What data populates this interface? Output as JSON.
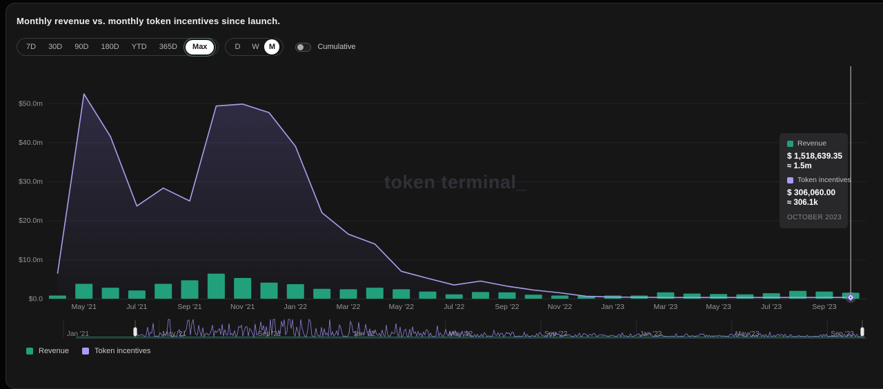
{
  "header": {
    "title": "Monthly revenue vs. monthly token incentives since launch."
  },
  "controls": {
    "ranges": [
      "7D",
      "30D",
      "90D",
      "180D",
      "YTD",
      "365D",
      "Max"
    ],
    "selected_range": "Max",
    "granularities": [
      "D",
      "W",
      "M"
    ],
    "selected_granularity": "M",
    "cumulative_label": "Cumulative",
    "cumulative_on": false
  },
  "watermark": "token terminal_",
  "tooltip": {
    "rows": [
      {
        "label": "Revenue",
        "color": "#22a07c",
        "value": "$ 1,518,639.35",
        "approx": "≈ 1.5m"
      },
      {
        "label": "Token incentives",
        "color": "#a99df3",
        "value": "$ 306,060.00",
        "approx": "≈ 306.1k"
      }
    ],
    "period": "OCTOBER 2023"
  },
  "legend": [
    {
      "label": "Revenue",
      "color": "#22a07c"
    },
    {
      "label": "Token incentives",
      "color": "#a99df3"
    }
  ],
  "chart_data": {
    "type": "bar+line",
    "title": "Monthly revenue vs. monthly token incentives since launch.",
    "unit": "USD millions",
    "categories": [
      "Apr '21",
      "May '21",
      "Jun '21",
      "Jul '21",
      "Aug '21",
      "Sep '21",
      "Oct '21",
      "Nov '21",
      "Dec '21",
      "Jan '22",
      "Feb '22",
      "Mar '22",
      "Apr '22",
      "May '22",
      "Jun '22",
      "Jul '22",
      "Aug '22",
      "Sep '22",
      "Oct '22",
      "Nov '22",
      "Dec '22",
      "Jan '23",
      "Feb '23",
      "Mar '23",
      "Apr '23",
      "May '23",
      "Jun '23",
      "Jul '23",
      "Aug '23",
      "Sep '23",
      "Oct '23"
    ],
    "series": [
      {
        "name": "Revenue",
        "type": "bar",
        "color": "#22a07c",
        "values": [
          0.8,
          3.8,
          2.8,
          2.1,
          3.8,
          4.7,
          6.4,
          5.3,
          4.1,
          3.7,
          2.5,
          2.4,
          2.8,
          2.4,
          1.8,
          1.1,
          1.7,
          1.6,
          1.0,
          0.8,
          0.7,
          0.8,
          0.8,
          1.6,
          1.3,
          1.2,
          1.1,
          1.4,
          2.0,
          1.8,
          1.52
        ]
      },
      {
        "name": "Token incentives",
        "type": "line",
        "color": "#aaa0ed",
        "values": [
          6.4,
          52.4,
          41.5,
          23.7,
          28.3,
          25.0,
          49.3,
          49.8,
          47.6,
          39.0,
          22.0,
          16.5,
          14.0,
          7.0,
          5.2,
          3.5,
          4.5,
          3.2,
          2.2,
          1.5,
          0.6,
          0.4,
          0.35,
          0.3,
          0.3,
          0.3,
          0.3,
          0.3,
          0.3,
          0.3,
          0.31
        ]
      }
    ],
    "y_tick_labels": [
      "$0.0",
      "$10.0m",
      "$20.0m",
      "$30.0m",
      "$40.0m",
      "$50.0m"
    ],
    "y_tick_values": [
      0,
      10,
      20,
      30,
      40,
      50
    ],
    "ylim": [
      0,
      59.5
    ],
    "x_axis_labels": [
      "May '21",
      "Jul '21",
      "Sep '21",
      "Nov '21",
      "Jan '22",
      "Mar '22",
      "May '22",
      "Jul '22",
      "Sep '22",
      "Nov '22",
      "Jan '23",
      "Mar '23",
      "May '23",
      "Jul '23",
      "Sep '23"
    ],
    "grid": "horizontal",
    "legend_position": "bottom-left",
    "highlighted_category": "Oct '23"
  },
  "brush": {
    "x_labels": [
      "Jan '21",
      "May '21",
      "Sep '21",
      "Jan '22",
      "May '22",
      "Sep '22",
      "Jan '23",
      "May '23",
      "Sep '23"
    ]
  }
}
